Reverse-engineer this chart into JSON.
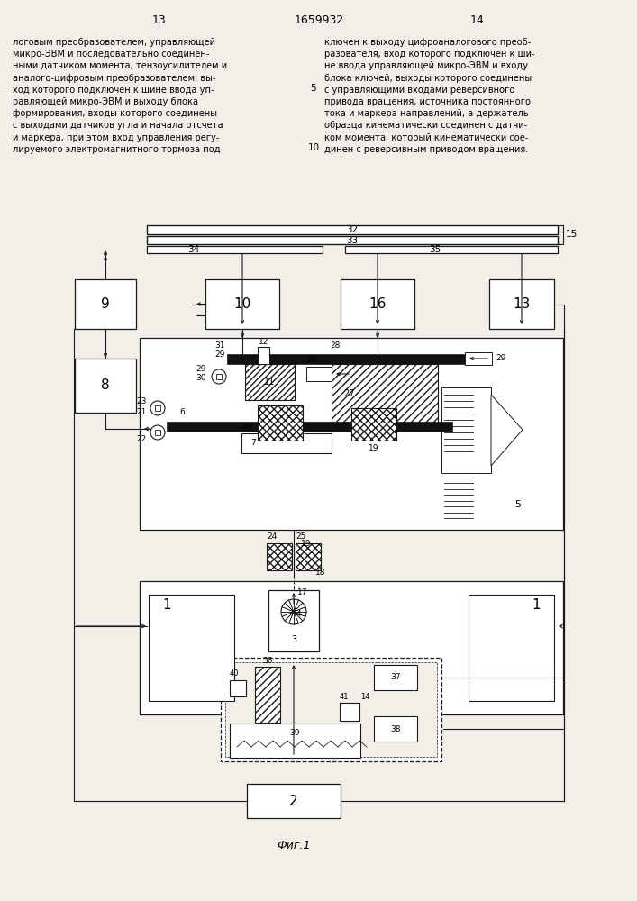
{
  "page_left": "13",
  "patent": "1659932",
  "page_right": "14",
  "text_left": "логовым преобразователем, управляющей\nмикро-ЭВМ и последовательно соединен-\nными датчиком момента, тензоусилителем и\nаналого-цифровым преобразователем, вы-\nход которого подключен к шине ввода уп-\nравляющей микро-ЭВМ и выходу блока\nформирования, входы которого соединены\nс выходами датчиков угла и начала отсчета\nи маркера, при этом вход управления регу-\nлируемого электромагнитного тормоза под-",
  "text_right": "ключен к выходу цифроаналогового преоб-\nразователя, вход которого подключен к ши-\nне ввода управляющей микро-ЭВМ и входу\nблока ключей, выходы которого соединены\nс управляющими входами реверсивного\nпривода вращения, источника постоянного\nтока и маркера направлений, а держатель\nобразца кинематически соединен с датчи-\nком момента, который кинематически сое-\nдинен с реверсивным приводом вращения.",
  "line5": "5",
  "line10": "10",
  "caption": "Фиг.1",
  "bg": "#f2efe9",
  "lc": "#1a1a1a"
}
